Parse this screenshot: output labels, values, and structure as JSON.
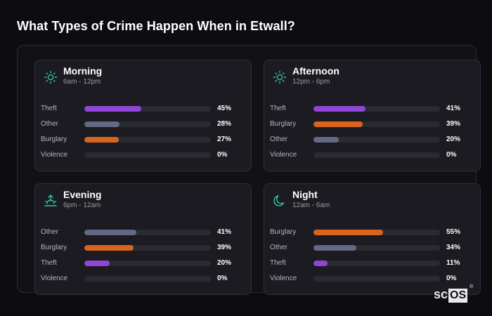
{
  "title": "What Types of Crime Happen When in Etwall?",
  "colors": {
    "purple": "#8f45d6",
    "slate": "#616a82",
    "orange": "#d8641f",
    "accent": "#2ec4a4"
  },
  "cards": [
    {
      "title": "Morning",
      "subtitle": "6am - 12pm",
      "icon": "sun-icon",
      "rows": [
        {
          "label": "Theft",
          "pct": "45%",
          "value": 45,
          "color": "purple"
        },
        {
          "label": "Other",
          "pct": "28%",
          "value": 28,
          "color": "slate"
        },
        {
          "label": "Burglary",
          "pct": "27%",
          "value": 27,
          "color": "orange"
        },
        {
          "label": "Violence",
          "pct": "0%",
          "value": 0,
          "color": "slate"
        }
      ]
    },
    {
      "title": "Afternoon",
      "subtitle": "12pm - 6pm",
      "icon": "sun-icon",
      "rows": [
        {
          "label": "Theft",
          "pct": "41%",
          "value": 41,
          "color": "purple"
        },
        {
          "label": "Burglary",
          "pct": "39%",
          "value": 39,
          "color": "orange"
        },
        {
          "label": "Other",
          "pct": "20%",
          "value": 20,
          "color": "slate"
        },
        {
          "label": "Violence",
          "pct": "0%",
          "value": 0,
          "color": "slate"
        }
      ]
    },
    {
      "title": "Evening",
      "subtitle": "6pm - 12am",
      "icon": "sunset-icon",
      "rows": [
        {
          "label": "Other",
          "pct": "41%",
          "value": 41,
          "color": "slate"
        },
        {
          "label": "Burglary",
          "pct": "39%",
          "value": 39,
          "color": "orange"
        },
        {
          "label": "Theft",
          "pct": "20%",
          "value": 20,
          "color": "purple"
        },
        {
          "label": "Violence",
          "pct": "0%",
          "value": 0,
          "color": "slate"
        }
      ]
    },
    {
      "title": "Night",
      "subtitle": "12am - 6am",
      "icon": "moon-icon",
      "rows": [
        {
          "label": "Burglary",
          "pct": "55%",
          "value": 55,
          "color": "orange"
        },
        {
          "label": "Other",
          "pct": "34%",
          "value": 34,
          "color": "slate"
        },
        {
          "label": "Theft",
          "pct": "11%",
          "value": 11,
          "color": "purple"
        },
        {
          "label": "Violence",
          "pct": "0%",
          "value": 0,
          "color": "slate"
        }
      ]
    }
  ],
  "logo": {
    "text_sc": "sc",
    "text_os": "OS",
    "reg": "®"
  }
}
